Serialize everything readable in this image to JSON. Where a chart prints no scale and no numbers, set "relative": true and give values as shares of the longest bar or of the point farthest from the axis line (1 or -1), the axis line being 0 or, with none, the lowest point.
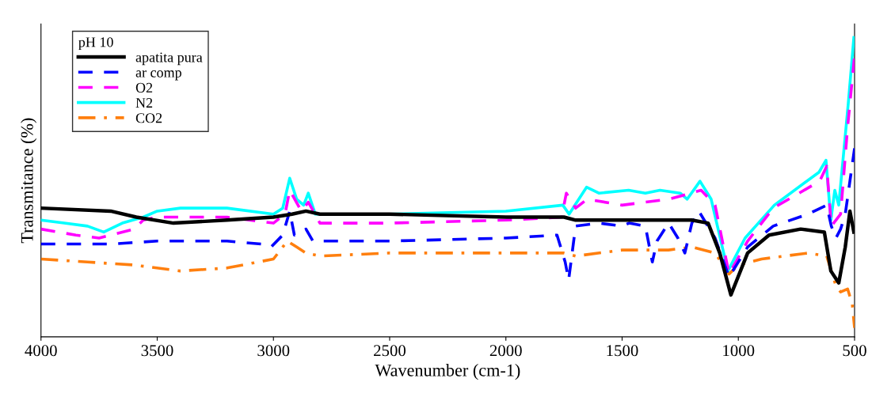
{
  "chart_data": {
    "type": "line",
    "relative": true,
    "xlabel": "Wavenumber (cm-1)",
    "ylabel": "Transmitance (%)",
    "legend_title": "pH 10",
    "legend": "top left",
    "grid": false,
    "xlim": [
      4000,
      500
    ],
    "xticks": [
      4000,
      3500,
      3000,
      2500,
      2000,
      1500,
      1000,
      500
    ],
    "series": [
      {
        "name": "apatita pura",
        "color": "#000000",
        "line_style": "solid",
        "x": [
          4000,
          3700,
          3590,
          3430,
          3200,
          3000,
          2920,
          2860,
          2800,
          2500,
          2000,
          1750,
          1700,
          1500,
          1250,
          1200,
          1130,
          1080,
          1032,
          960,
          868,
          732,
          630,
          602,
          568,
          540,
          520,
          503
        ],
        "values": [
          0.43,
          0.42,
          0.4,
          0.38,
          0.39,
          0.4,
          0.41,
          0.42,
          0.41,
          0.41,
          0.4,
          0.4,
          0.39,
          0.39,
          0.39,
          0.39,
          0.38,
          0.28,
          0.14,
          0.28,
          0.34,
          0.36,
          0.35,
          0.22,
          0.18,
          0.3,
          0.42,
          0.35
        ]
      },
      {
        "name": "ar comp",
        "color": "#0000ff",
        "line_style": "dashed",
        "x": [
          4000,
          3700,
          3500,
          3200,
          3050,
          3010,
          2960,
          2930,
          2910,
          2860,
          2830,
          2500,
          2000,
          1780,
          1745,
          1730,
          1715,
          1700,
          1600,
          1500,
          1470,
          1400,
          1370,
          1350,
          1300,
          1260,
          1230,
          1200,
          1170,
          1100,
          1040,
          960,
          850,
          700,
          620,
          600,
          580,
          560,
          540,
          520,
          500
        ],
        "values": [
          0.31,
          0.31,
          0.32,
          0.32,
          0.31,
          0.3,
          0.34,
          0.42,
          0.34,
          0.36,
          0.32,
          0.32,
          0.33,
          0.34,
          0.25,
          0.19,
          0.28,
          0.37,
          0.38,
          0.37,
          0.38,
          0.37,
          0.25,
          0.32,
          0.38,
          0.33,
          0.28,
          0.38,
          0.42,
          0.33,
          0.2,
          0.3,
          0.37,
          0.41,
          0.44,
          0.37,
          0.33,
          0.36,
          0.41,
          0.52,
          0.63
        ]
      },
      {
        "name": "O2",
        "color": "#ff00ff",
        "line_style": "dashed",
        "x": [
          4000,
          3850,
          3750,
          3600,
          3560,
          3500,
          3200,
          3000,
          2950,
          2930,
          2880,
          2850,
          2800,
          2500,
          2000,
          1760,
          1740,
          1700,
          1650,
          1500,
          1300,
          1250,
          1160,
          1100,
          1040,
          960,
          850,
          650,
          620,
          600,
          560,
          530,
          500
        ],
        "values": [
          0.36,
          0.34,
          0.33,
          0.36,
          0.39,
          0.4,
          0.4,
          0.38,
          0.41,
          0.49,
          0.42,
          0.45,
          0.38,
          0.38,
          0.39,
          0.4,
          0.48,
          0.43,
          0.46,
          0.44,
          0.46,
          0.47,
          0.49,
          0.44,
          0.21,
          0.32,
          0.43,
          0.52,
          0.57,
          0.37,
          0.41,
          0.7,
          0.94
        ]
      },
      {
        "name": "N2",
        "color": "#00ffff",
        "line_style": "solid",
        "x": [
          4000,
          3900,
          3800,
          3730,
          3650,
          3560,
          3500,
          3400,
          3200,
          3000,
          2960,
          2930,
          2900,
          2870,
          2850,
          2820,
          2500,
          2000,
          1755,
          1728,
          1653,
          1600,
          1472,
          1400,
          1337,
          1250,
          1220,
          1165,
          1117,
          1045,
          971,
          845,
          653,
          623,
          602,
          585,
          568,
          527,
          503
        ],
        "values": [
          0.39,
          0.38,
          0.37,
          0.35,
          0.38,
          0.4,
          0.42,
          0.43,
          0.43,
          0.41,
          0.43,
          0.53,
          0.46,
          0.44,
          0.48,
          0.41,
          0.41,
          0.42,
          0.44,
          0.41,
          0.5,
          0.48,
          0.49,
          0.48,
          0.49,
          0.48,
          0.46,
          0.52,
          0.46,
          0.22,
          0.33,
          0.44,
          0.55,
          0.59,
          0.39,
          0.49,
          0.44,
          0.78,
          1.0
        ]
      },
      {
        "name": "CO2",
        "color": "#ff7f0e",
        "line_style": "dashdot",
        "x": [
          4000,
          3800,
          3600,
          3400,
          3200,
          3000,
          2940,
          2900,
          2860,
          2800,
          2500,
          2000,
          1750,
          1700,
          1500,
          1300,
          1200,
          1100,
          1040,
          1000,
          900,
          700,
          620,
          580,
          560,
          530,
          510,
          500
        ],
        "values": [
          0.26,
          0.25,
          0.24,
          0.22,
          0.23,
          0.26,
          0.32,
          0.3,
          0.28,
          0.27,
          0.28,
          0.28,
          0.28,
          0.27,
          0.29,
          0.29,
          0.3,
          0.28,
          0.21,
          0.24,
          0.26,
          0.28,
          0.27,
          0.17,
          0.15,
          0.16,
          0.11,
          0.03
        ]
      }
    ]
  }
}
